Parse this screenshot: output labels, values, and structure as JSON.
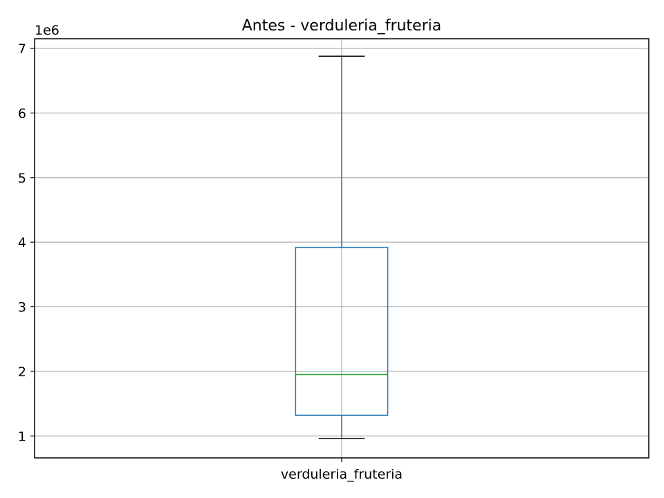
{
  "chart_data": {
    "type": "box",
    "title": "Antes - verduleria_fruteria",
    "xlabel": "",
    "ylabel": "",
    "y_offset_label": "1e6",
    "y_scale": 1000000,
    "ylim": [
      660000,
      7150000
    ],
    "yticks": [
      1,
      2,
      3,
      4,
      5,
      6,
      7
    ],
    "grid": true,
    "categories": [
      "verduleria_fruteria"
    ],
    "boxes": [
      {
        "category": "verduleria_fruteria",
        "whisker_low": 960000,
        "q1": 1320000,
        "median": 1950000,
        "q3": 3920000,
        "whisker_high": 6880000
      }
    ],
    "colors": {
      "box": "#1f77b4",
      "median": "#2ca02c",
      "caps": "#000000",
      "grid": "#b0b0b0",
      "frame": "#000000"
    }
  }
}
